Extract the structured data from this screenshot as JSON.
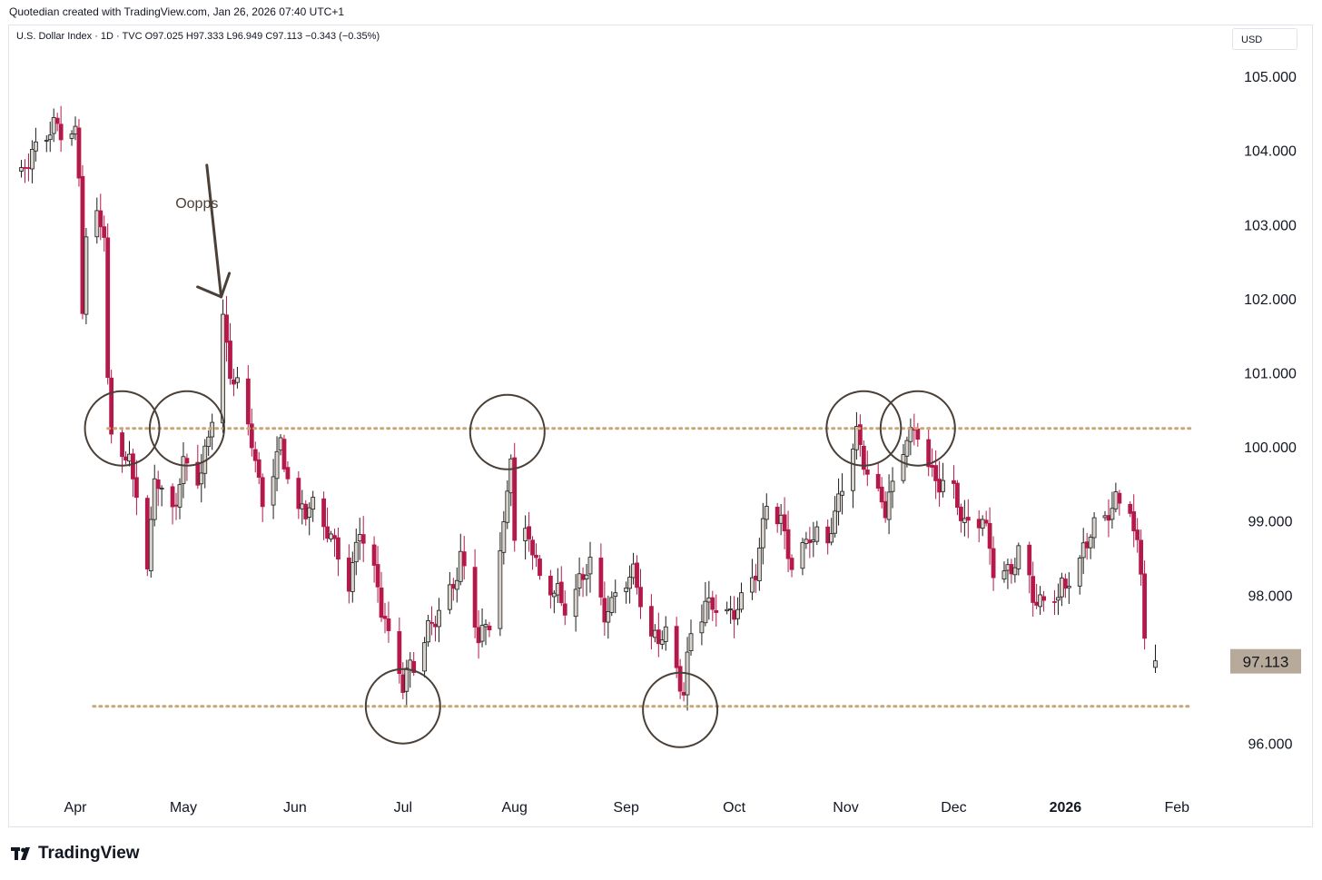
{
  "header": {
    "credit": "Quotedian created with TradingView.com, Jan 26, 2026 07:40 UTC+1",
    "legend": "U.S. Dollar Index · 1D · TVC  O97.025  H97.333  L96.949  C97.113  −0.343 (−0.35%)",
    "currency_button": "USD"
  },
  "branding": {
    "logo_text": "TradingView",
    "logo_icon": "tradingview-logo-icon"
  },
  "colors": {
    "up_body": "#d8d3cb",
    "down_body": "#b5194a",
    "outline": "#1b1b1b",
    "support_line": "#c8a779",
    "last_price_bg": "#b7aa9a",
    "annotation": "#4a4037"
  },
  "chart_data": {
    "type": "candlestick",
    "title": "U.S. Dollar Index",
    "ylim": [
      95.15,
      105.5
    ],
    "y_ticks": [
      "105.000",
      "104.000",
      "103.000",
      "102.000",
      "101.000",
      "100.000",
      "99.000",
      "98.000",
      "96.000"
    ],
    "y_tick_values": [
      105,
      104,
      103,
      102,
      101,
      100,
      99,
      98,
      96
    ],
    "x_labels": [
      {
        "label": "Apr",
        "date": "2025-04-01"
      },
      {
        "label": "May",
        "date": "2025-05-01"
      },
      {
        "label": "Jun",
        "date": "2025-06-01"
      },
      {
        "label": "Jul",
        "date": "2025-07-01"
      },
      {
        "label": "Aug",
        "date": "2025-08-01"
      },
      {
        "label": "Sep",
        "date": "2025-09-01"
      },
      {
        "label": "Oct",
        "date": "2025-10-01"
      },
      {
        "label": "Nov",
        "date": "2025-11-01"
      },
      {
        "label": "Dec",
        "date": "2025-12-01"
      },
      {
        "label": "2026",
        "date": "2026-01-01",
        "bold": true
      },
      {
        "label": "Feb",
        "date": "2026-02-01"
      }
    ],
    "close_path": [
      [
        "2025-03-17",
        103.7
      ],
      [
        "2025-03-21",
        104.0
      ],
      [
        "2025-03-26",
        104.3
      ],
      [
        "2025-04-01",
        104.2
      ],
      [
        "2025-04-02",
        103.6
      ],
      [
        "2025-04-03",
        101.9
      ],
      [
        "2025-04-04",
        102.8
      ],
      [
        "2025-04-07",
        103.1
      ],
      [
        "2025-04-09",
        102.9
      ],
      [
        "2025-04-10",
        100.8
      ],
      [
        "2025-04-11",
        100.1
      ],
      [
        "2025-04-15",
        99.9
      ],
      [
        "2025-04-18",
        99.4
      ],
      [
        "2025-04-21",
        98.3
      ],
      [
        "2025-04-23",
        99.6
      ],
      [
        "2025-04-28",
        99.1
      ],
      [
        "2025-05-01",
        99.8
      ],
      [
        "2025-05-06",
        99.6
      ],
      [
        "2025-05-09",
        100.4
      ],
      [
        "2025-05-12",
        101.7
      ],
      [
        "2025-05-14",
        101.0
      ],
      [
        "2025-05-16",
        100.8
      ],
      [
        "2025-05-20",
        100.1
      ],
      [
        "2025-05-23",
        99.2
      ],
      [
        "2025-05-28",
        100.0
      ],
      [
        "2025-06-02",
        99.1
      ],
      [
        "2025-06-06",
        99.2
      ],
      [
        "2025-06-11",
        98.8
      ],
      [
        "2025-06-16",
        98.1
      ],
      [
        "2025-06-19",
        98.9
      ],
      [
        "2025-06-23",
        98.3
      ],
      [
        "2025-06-27",
        97.4
      ],
      [
        "2025-07-01",
        96.8
      ],
      [
        "2025-07-03",
        97.0
      ],
      [
        "2025-07-08",
        97.5
      ],
      [
        "2025-07-14",
        98.0
      ],
      [
        "2025-07-17",
        98.5
      ],
      [
        "2025-07-22",
        97.4
      ],
      [
        "2025-07-25",
        97.6
      ],
      [
        "2025-07-29",
        98.9
      ],
      [
        "2025-07-31",
        100.0
      ],
      [
        "2025-08-01",
        98.7
      ],
      [
        "2025-08-05",
        98.8
      ],
      [
        "2025-08-08",
        98.2
      ],
      [
        "2025-08-12",
        98.1
      ],
      [
        "2025-08-15",
        97.8
      ],
      [
        "2025-08-19",
        98.2
      ],
      [
        "2025-08-22",
        98.4
      ],
      [
        "2025-08-26",
        97.7
      ],
      [
        "2025-08-29",
        98.0
      ],
      [
        "2025-09-03",
        98.3
      ],
      [
        "2025-09-08",
        97.4
      ],
      [
        "2025-09-12",
        97.5
      ],
      [
        "2025-09-17",
        96.7
      ],
      [
        "2025-09-19",
        97.5
      ],
      [
        "2025-09-24",
        97.9
      ],
      [
        "2025-09-29",
        97.7
      ],
      [
        "2025-10-02",
        97.8
      ],
      [
        "2025-10-07",
        98.3
      ],
      [
        "2025-10-10",
        99.3
      ],
      [
        "2025-10-14",
        99.0
      ],
      [
        "2025-10-17",
        98.4
      ],
      [
        "2025-10-22",
        98.8
      ],
      [
        "2025-10-27",
        98.7
      ],
      [
        "2025-10-30",
        99.3
      ],
      [
        "2025-11-04",
        100.2
      ],
      [
        "2025-11-07",
        99.6
      ],
      [
        "2025-11-12",
        99.2
      ],
      [
        "2025-11-14",
        99.4
      ],
      [
        "2025-11-18",
        100.2
      ],
      [
        "2025-11-21",
        100.2
      ],
      [
        "2025-11-25",
        99.6
      ],
      [
        "2025-12-01",
        99.4
      ],
      [
        "2025-12-04",
        98.9
      ],
      [
        "2025-12-09",
        99.1
      ],
      [
        "2025-12-12",
        98.4
      ],
      [
        "2025-12-17",
        98.3
      ],
      [
        "2025-12-19",
        98.6
      ],
      [
        "2025-12-24",
        97.9
      ],
      [
        "2025-12-30",
        98.0
      ],
      [
        "2026-01-05",
        98.4
      ],
      [
        "2026-01-08",
        98.9
      ],
      [
        "2026-01-13",
        99.1
      ],
      [
        "2026-01-16",
        99.3
      ],
      [
        "2026-01-19",
        99.2
      ],
      [
        "2026-01-20",
        98.8
      ],
      [
        "2026-01-22",
        98.4
      ],
      [
        "2026-01-23",
        97.5
      ],
      [
        "2026-01-26",
        97.11
      ]
    ],
    "last_candle": {
      "date": "2026-01-26",
      "open": 97.025,
      "high": 97.333,
      "low": 96.949,
      "close": 97.113
    },
    "last_price_label": "97.113",
    "support_resistance_lines": [
      {
        "y": 100.25,
        "from": "2025-04-10",
        "to": "2026-02-05"
      },
      {
        "y": 96.5,
        "from": "2025-04-06",
        "to": "2026-02-05"
      }
    ],
    "circled_points": [
      {
        "date": "2025-04-14",
        "y": 100.25
      },
      {
        "date": "2025-05-02",
        "y": 100.25
      },
      {
        "date": "2025-07-01",
        "y": 96.5
      },
      {
        "date": "2025-07-30",
        "y": 100.2
      },
      {
        "date": "2025-09-16",
        "y": 96.45
      },
      {
        "date": "2025-11-06",
        "y": 100.25
      },
      {
        "date": "2025-11-21",
        "y": 100.25
      }
    ],
    "annotation": {
      "text": "Oopps",
      "date": "2025-05-06",
      "y": 103.3,
      "arrow_to_date": "2025-05-11",
      "arrow_to_y": 102.0
    }
  }
}
